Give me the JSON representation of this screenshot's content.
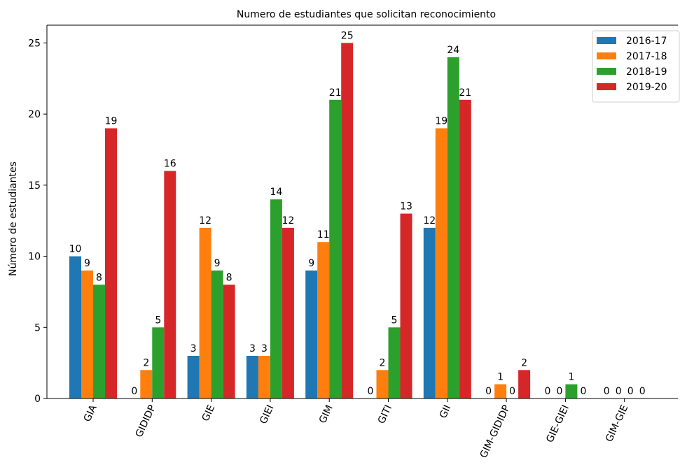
{
  "chart_data": {
    "type": "bar",
    "title": "Numero de estudiantes que solicitan reconocimiento",
    "xlabel": "",
    "ylabel": "Número de estudiantes",
    "ylim": [
      0,
      26.25
    ],
    "yticks": [
      0,
      5,
      10,
      15,
      20,
      25
    ],
    "grid": false,
    "legend": "top-right",
    "categories": [
      "GIA",
      "GIDIDP",
      "GIE",
      "GIEI",
      "GIM",
      "GITI",
      "GII",
      "GIM-GIDIDP",
      "GIE-GIEI",
      "GIM-GIE"
    ],
    "series": [
      {
        "name": "2016-17",
        "color": "#1f77b4",
        "values": [
          10,
          0,
          3,
          3,
          9,
          0,
          12,
          0,
          0,
          0
        ]
      },
      {
        "name": "2017-18",
        "color": "#ff7f0e",
        "values": [
          9,
          2,
          12,
          3,
          11,
          2,
          19,
          1,
          0,
          0
        ]
      },
      {
        "name": "2018-19",
        "color": "#2ca02c",
        "values": [
          8,
          5,
          9,
          14,
          21,
          5,
          24,
          0,
          1,
          0
        ]
      },
      {
        "name": "2019-20",
        "color": "#d62728",
        "values": [
          19,
          16,
          8,
          12,
          25,
          13,
          21,
          2,
          0,
          0
        ]
      }
    ]
  }
}
